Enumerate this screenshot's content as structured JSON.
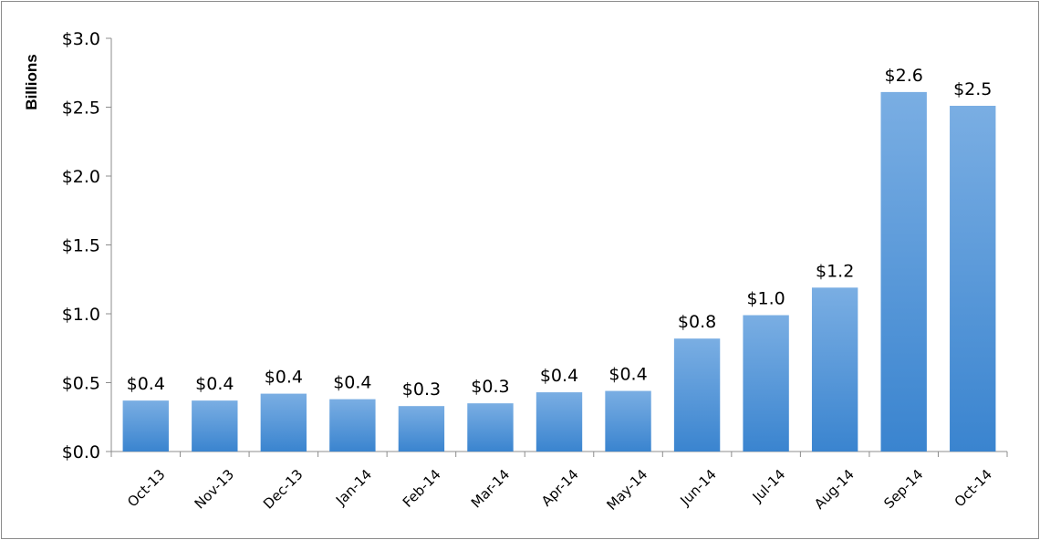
{
  "chart_data": {
    "type": "bar",
    "title": "",
    "xlabel": "",
    "ylabel": "Billions",
    "ylim": [
      0,
      3.0
    ],
    "yticks": [
      "$0.0",
      "$0.5",
      "$1.0",
      "$1.5",
      "$2.0",
      "$2.5",
      "$3.0"
    ],
    "ytick_values": [
      0,
      0.5,
      1.0,
      1.5,
      2.0,
      2.5,
      3.0
    ],
    "categories": [
      "Oct-13",
      "Nov-13",
      "Dec-13",
      "Jan-14",
      "Feb-14",
      "Mar-14",
      "Apr-14",
      "May-14",
      "Jun-14",
      "Jul-14",
      "Aug-14",
      "Sep-14",
      "Oct-14"
    ],
    "values": [
      0.37,
      0.37,
      0.42,
      0.38,
      0.33,
      0.35,
      0.43,
      0.44,
      0.82,
      0.99,
      1.19,
      2.61,
      2.51
    ],
    "data_labels": [
      "$0.4",
      "$0.4",
      "$0.4",
      "$0.4",
      "$0.3",
      "$0.3",
      "$0.4",
      "$0.4",
      "$0.8",
      "$1.0",
      "$1.2",
      "$2.6",
      "$2.5"
    ],
    "grid": false,
    "legend": "none",
    "bar_color_top": "#7aaee3",
    "bar_color_bottom": "#3a84cf"
  }
}
